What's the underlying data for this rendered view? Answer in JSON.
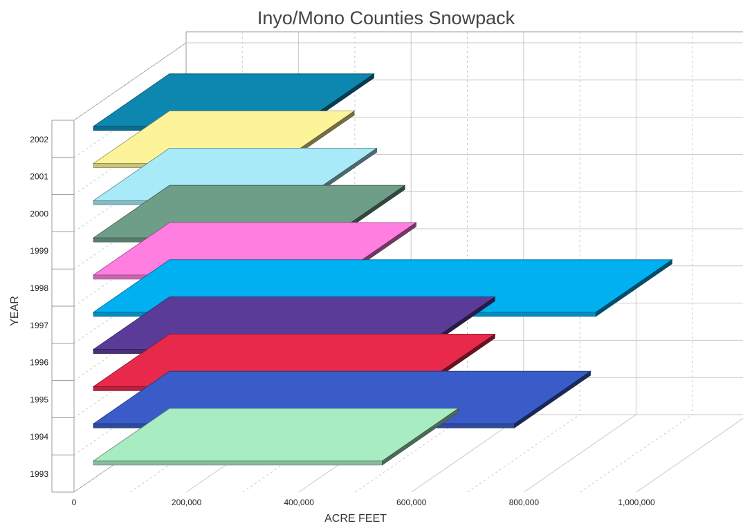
{
  "chart_data": {
    "type": "bar",
    "orientation": "horizontal",
    "style": "3d",
    "title": "Inyo/Mono Counties Snowpack",
    "xlabel": "ACRE FEET",
    "ylabel": "YEAR",
    "xlim": [
      0,
      1000000
    ],
    "x_ticks": [
      "0",
      "200,000",
      "400,000",
      "600,000",
      "800,000",
      "1,000,000"
    ],
    "grid": true,
    "categories": [
      "1993",
      "1994",
      "1995",
      "1996",
      "1997",
      "1998",
      "1999",
      "2000",
      "2001",
      "2002"
    ],
    "values": [
      575000,
      810000,
      640000,
      640000,
      955000,
      500000,
      480000,
      430000,
      390000,
      425000
    ],
    "colors": [
      "#a8ecc4",
      "#3a5cc8",
      "#e8294c",
      "#5a3c98",
      "#00b0f0",
      "#ff7ee0",
      "#6f9e88",
      "#a8eaf8",
      "#fdf49a",
      "#0e87b0"
    ]
  }
}
